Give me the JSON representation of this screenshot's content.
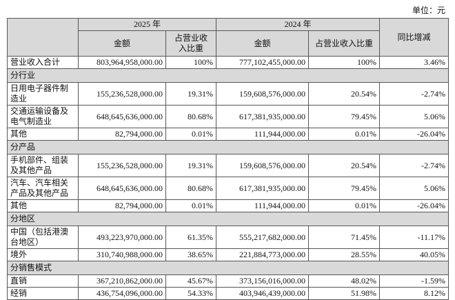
{
  "unit": "单位：元",
  "header": {
    "year1": "2025 年",
    "year2": "2024 年",
    "amount1": "金额",
    "share1": "占营业收入比重",
    "amount2": "金额",
    "share2": "占营业收入比重",
    "change": "同比增减"
  },
  "table": {
    "rows": [
      [
        "营业收入合计",
        "803,964,958,000.00",
        "100%",
        "777,102,455,000.00",
        "100%",
        "3.46%"
      ],
      [
        "分行业"
      ],
      [
        "日用电子器件制造业",
        "155,236,528,000.00",
        "19.31%",
        "159,608,576,000.00",
        "20.54%",
        "-2.74%"
      ],
      [
        "交通运输设备及电气制造业",
        "648,645,636,000.00",
        "80.68%",
        "617,381,935,000.00",
        "79.45%",
        "5.06%"
      ],
      [
        "其他",
        "82,794,000.00",
        "0.01%",
        "111,944,000.00",
        "0.01%",
        "-26.04%"
      ],
      [
        "分产品"
      ],
      [
        "手机部件、组装及其他产品",
        "155,236,528,000.00",
        "19.31%",
        "159,608,576,000.00",
        "20.54%",
        "-2.74%"
      ],
      [
        "汽车、汽车相关产品及其他产品",
        "648,645,636,000.00",
        "80.68%",
        "617,381,935,000.00",
        "79.45%",
        "5.06%"
      ],
      [
        "其他",
        "82,794,000.00",
        "0.01%",
        "111,944,000.00",
        "0.01%",
        "-26.04%"
      ],
      [
        "分地区"
      ],
      [
        "中国（包括港澳台地区）",
        "493,223,970,000.00",
        "61.35%",
        "555,217,682,000.00",
        "71.45%",
        "-11.17%"
      ],
      [
        "境外",
        "310,740,988,000.00",
        "38.65%",
        "221,884,773,000.00",
        "28.55%",
        "40.05%"
      ],
      [
        "分销售模式"
      ],
      [
        "直销",
        "367,210,862,000.00",
        "45.67%",
        "373,156,016,000.00",
        "48.02%",
        "-1.59%"
      ],
      [
        "经销",
        "436,754,096,000.00",
        "54.33%",
        "403,946,439,000.00",
        "51.98%",
        "8.12%"
      ]
    ]
  }
}
